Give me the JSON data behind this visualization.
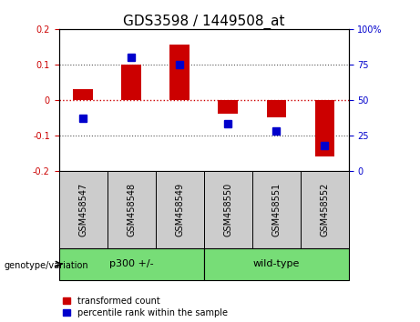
{
  "title": "GDS3598 / 1449508_at",
  "samples": [
    "GSM458547",
    "GSM458548",
    "GSM458549",
    "GSM458550",
    "GSM458551",
    "GSM458552"
  ],
  "red_values": [
    0.03,
    0.1,
    0.155,
    -0.04,
    -0.05,
    -0.16
  ],
  "blue_values": [
    37,
    80,
    75,
    33,
    28,
    18
  ],
  "ylim_left": [
    -0.2,
    0.2
  ],
  "ylim_right": [
    0,
    100
  ],
  "yticks_left": [
    -0.2,
    -0.1,
    0.0,
    0.1,
    0.2
  ],
  "yticks_right": [
    0,
    25,
    50,
    75,
    100
  ],
  "ytick_labels_right": [
    "0",
    "25",
    "50",
    "75",
    "100%"
  ],
  "ytick_labels_left": [
    "-0.2",
    "-0.1",
    "0",
    "0.1",
    "0.2"
  ],
  "group_bg_color": "#cccccc",
  "green_color": "#77dd77",
  "red_color": "#cc0000",
  "blue_color": "#0000cc",
  "bar_width": 0.4,
  "blue_marker_size": 6,
  "zero_line_color": "#cc0000",
  "dotted_line_color": "#555555",
  "legend_red_label": "transformed count",
  "legend_blue_label": "percentile rank within the sample",
  "genotype_label": "genotype/variation",
  "title_fontsize": 11,
  "tick_fontsize": 7,
  "label_fontsize": 7,
  "group_label_fontsize": 8,
  "sample_label_fontsize": 7,
  "group_info": [
    {
      "label": "p300 +/-",
      "start": 0,
      "end": 2
    },
    {
      "label": "wild-type",
      "start": 3,
      "end": 5
    }
  ]
}
